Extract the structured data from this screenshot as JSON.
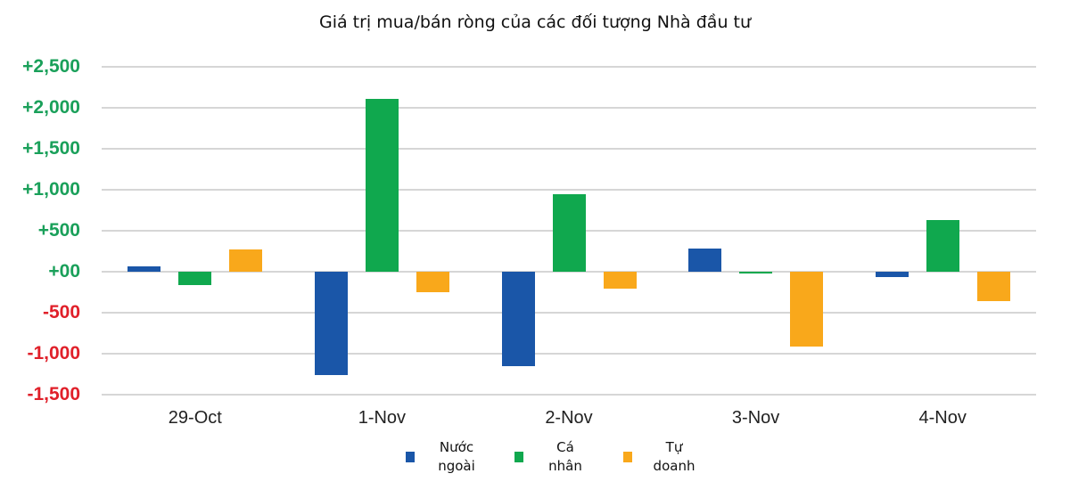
{
  "chart_data": {
    "type": "bar",
    "title": "Giá trị mua/bán ròng của các đối tượng Nhà đầu tư",
    "xlabel": "",
    "ylabel": "",
    "ylim": [
      -1500,
      2500
    ],
    "grid": true,
    "legend_position": "bottom",
    "categories": [
      "29-Oct",
      "1-Nov",
      "2-Nov",
      "3-Nov",
      "4-Nov"
    ],
    "yticks": [
      "+2,500",
      "+2,000",
      "+1,500",
      "+1,000",
      "+500",
      "+00",
      "-500",
      "-1,000",
      "-1,500"
    ],
    "ytick_values": [
      2500,
      2000,
      1500,
      1000,
      500,
      0,
      -500,
      -1000,
      -1500
    ],
    "ytick_colors": {
      "positive": "#1aa05a",
      "negative": "#e0202a"
    },
    "series": [
      {
        "name": "Nước ngoài",
        "color": "#1a56a8",
        "values": [
          60,
          -1260,
          -1155,
          280,
          -60
        ]
      },
      {
        "name": "Cá nhân",
        "color": "#10a84e",
        "values": [
          -160,
          2110,
          945,
          -20,
          630
        ]
      },
      {
        "name": "Tự doanh",
        "color": "#f9a81b",
        "values": [
          270,
          -250,
          -205,
          -915,
          -360
        ]
      }
    ]
  },
  "legend": [
    {
      "line1": "Nước",
      "line2": "ngoài"
    },
    {
      "line1": "Cá",
      "line2": "nhân"
    },
    {
      "line1": "Tự",
      "line2": "doanh"
    }
  ]
}
